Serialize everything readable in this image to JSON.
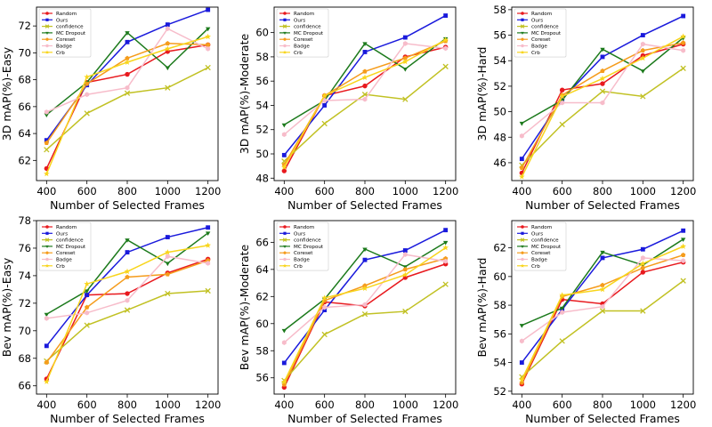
{
  "chart_data": [
    {
      "type": "line",
      "xlabel": "Number of Selected Frames",
      "ylabel": "3D mAP(%)-Easy",
      "x": [
        400,
        600,
        800,
        1000,
        1200
      ],
      "xticks": [
        400,
        600,
        800,
        1000,
        1200
      ],
      "ylim": [
        60.5,
        73.4
      ],
      "yticks": [
        62,
        64,
        66,
        68,
        70,
        72
      ],
      "legend_position": "upper-left",
      "series": [
        {
          "name": "Random",
          "values": [
            61.4,
            67.8,
            68.4,
            70.1,
            70.6
          ]
        },
        {
          "name": "Ours",
          "values": [
            63.5,
            67.6,
            70.8,
            72.1,
            73.2
          ]
        },
        {
          "name": "confidence",
          "values": [
            62.8,
            65.5,
            67.0,
            67.4,
            68.9
          ]
        },
        {
          "name": "MC Dropout",
          "values": [
            65.4,
            67.8,
            71.5,
            68.9,
            71.8
          ]
        },
        {
          "name": "Coreset",
          "values": [
            63.3,
            67.7,
            69.6,
            70.7,
            70.6
          ]
        },
        {
          "name": "Badge",
          "values": [
            65.6,
            66.9,
            67.4,
            71.8,
            70.3
          ]
        },
        {
          "name": "Crb",
          "values": [
            61.0,
            68.2,
            69.3,
            70.3,
            71.2
          ]
        }
      ]
    },
    {
      "type": "line",
      "xlabel": "Number of Selected Frames",
      "ylabel": "3D mAP(%)-Moderate",
      "x": [
        400,
        600,
        800,
        1000,
        1200
      ],
      "xticks": [
        400,
        600,
        800,
        1000,
        1200
      ],
      "ylim": [
        47.8,
        62.1
      ],
      "yticks": [
        48,
        50,
        52,
        54,
        56,
        58,
        60
      ],
      "legend_position": "upper-left",
      "series": [
        {
          "name": "Random",
          "values": [
            48.6,
            54.8,
            55.6,
            58.0,
            58.8
          ]
        },
        {
          "name": "Ours",
          "values": [
            49.9,
            54.0,
            58.4,
            59.6,
            61.4
          ]
        },
        {
          "name": "confidence",
          "values": [
            49.4,
            52.5,
            54.9,
            54.5,
            57.2
          ]
        },
        {
          "name": "MC Dropout",
          "values": [
            52.4,
            54.4,
            59.1,
            57.0,
            59.5
          ]
        },
        {
          "name": "Coreset",
          "values": [
            49.1,
            54.8,
            56.8,
            57.9,
            59.3
          ]
        },
        {
          "name": "Badge",
          "values": [
            51.6,
            54.4,
            54.5,
            59.1,
            58.7
          ]
        },
        {
          "name": "Crb",
          "values": [
            48.9,
            54.8,
            56.3,
            57.6,
            59.4
          ]
        }
      ]
    },
    {
      "type": "line",
      "xlabel": "Number of Selected Frames",
      "ylabel": "3D mAP(%)-Hard",
      "x": [
        400,
        600,
        800,
        1000,
        1200
      ],
      "xticks": [
        400,
        600,
        800,
        1000,
        1200
      ],
      "ylim": [
        44.6,
        58.2
      ],
      "yticks": [
        46,
        48,
        50,
        52,
        54,
        56,
        58
      ],
      "legend_position": "upper-left",
      "series": [
        {
          "name": "Random",
          "values": [
            45.2,
            51.7,
            52.2,
            54.4,
            55.3
          ]
        },
        {
          "name": "Ours",
          "values": [
            46.3,
            51.0,
            54.3,
            56.0,
            57.5
          ]
        },
        {
          "name": "confidence",
          "values": [
            45.8,
            49.0,
            51.6,
            51.2,
            53.4
          ]
        },
        {
          "name": "MC Dropout",
          "values": [
            49.1,
            50.9,
            54.9,
            53.2,
            55.8
          ]
        },
        {
          "name": "Coreset",
          "values": [
            45.6,
            51.3,
            53.2,
            54.8,
            55.4
          ]
        },
        {
          "name": "Badge",
          "values": [
            48.1,
            50.7,
            50.7,
            55.3,
            54.8
          ]
        },
        {
          "name": "Crb",
          "values": [
            44.9,
            51.2,
            52.6,
            54.2,
            55.9
          ]
        }
      ]
    },
    {
      "type": "line",
      "xlabel": "Number of Selected Frames",
      "ylabel": "Bev mAP(%)-Easy",
      "x": [
        400,
        600,
        800,
        1000,
        1200
      ],
      "xticks": [
        400,
        600,
        800,
        1000,
        1200
      ],
      "ylim": [
        65.4,
        78.0
      ],
      "yticks": [
        66,
        68,
        70,
        72,
        74,
        76,
        78
      ],
      "legend_position": "upper-left",
      "series": [
        {
          "name": "Random",
          "values": [
            66.5,
            72.6,
            72.7,
            74.2,
            75.2
          ]
        },
        {
          "name": "Ours",
          "values": [
            68.9,
            72.6,
            75.7,
            76.8,
            77.5
          ]
        },
        {
          "name": "confidence",
          "values": [
            67.8,
            70.4,
            71.5,
            72.7,
            72.9
          ]
        },
        {
          "name": "MC Dropout",
          "values": [
            71.2,
            72.9,
            76.6,
            74.9,
            77.1
          ]
        },
        {
          "name": "Coreset",
          "values": [
            67.7,
            71.7,
            73.9,
            74.1,
            75.1
          ]
        },
        {
          "name": "Badge",
          "values": [
            70.9,
            71.3,
            72.2,
            75.4,
            74.9
          ]
        },
        {
          "name": "Crb",
          "values": [
            66.3,
            73.4,
            74.3,
            75.7,
            76.2
          ]
        }
      ]
    },
    {
      "type": "line",
      "xlabel": "Number of Selected Frames",
      "ylabel": "Bev mAP(%)-Moderate",
      "x": [
        400,
        600,
        800,
        1000,
        1200
      ],
      "xticks": [
        400,
        600,
        800,
        1000,
        1200
      ],
      "ylim": [
        54.8,
        67.6
      ],
      "yticks": [
        56,
        58,
        60,
        62,
        64,
        66
      ],
      "legend_position": "upper-left",
      "series": [
        {
          "name": "Random",
          "values": [
            55.3,
            61.6,
            61.3,
            63.4,
            64.4
          ]
        },
        {
          "name": "Ours",
          "values": [
            57.1,
            61.0,
            64.7,
            65.4,
            66.9
          ]
        },
        {
          "name": "confidence",
          "values": [
            55.8,
            59.2,
            60.7,
            60.9,
            62.9
          ]
        },
        {
          "name": "MC Dropout",
          "values": [
            59.5,
            61.8,
            65.5,
            64.2,
            66.0
          ]
        },
        {
          "name": "Coreset",
          "values": [
            55.5,
            61.7,
            62.8,
            64.0,
            64.8
          ]
        },
        {
          "name": "Badge",
          "values": [
            58.6,
            61.2,
            61.4,
            65.1,
            64.6
          ]
        },
        {
          "name": "Crb",
          "values": [
            55.7,
            61.9,
            62.6,
            63.6,
            65.6
          ]
        }
      ]
    },
    {
      "type": "line",
      "xlabel": "Number of Selected Frames",
      "ylabel": "Bev mAP(%)-Hard",
      "x": [
        400,
        600,
        800,
        1000,
        1200
      ],
      "xticks": [
        400,
        600,
        800,
        1000,
        1200
      ],
      "ylim": [
        51.8,
        63.9
      ],
      "yticks": [
        52,
        54,
        56,
        58,
        60,
        62
      ],
      "legend_position": "upper-left",
      "series": [
        {
          "name": "Random",
          "values": [
            52.5,
            58.4,
            58.1,
            60.3,
            61.0
          ]
        },
        {
          "name": "Ours",
          "values": [
            54.0,
            57.7,
            61.3,
            61.9,
            63.2
          ]
        },
        {
          "name": "confidence",
          "values": [
            53.0,
            55.5,
            57.6,
            57.6,
            59.7
          ]
        },
        {
          "name": "MC Dropout",
          "values": [
            56.6,
            57.8,
            61.7,
            60.8,
            62.6
          ]
        },
        {
          "name": "Coreset",
          "values": [
            52.6,
            58.6,
            59.4,
            60.6,
            61.5
          ]
        },
        {
          "name": "Badge",
          "values": [
            55.5,
            57.5,
            57.9,
            61.3,
            61.1
          ]
        },
        {
          "name": "Crb",
          "values": [
            52.8,
            58.7,
            59.1,
            60.9,
            62.1
          ]
        }
      ]
    }
  ],
  "series_styles": [
    {
      "name": "Random",
      "color": "#e8191e",
      "marker": "circle"
    },
    {
      "name": "Ours",
      "color": "#1a1adc",
      "marker": "square"
    },
    {
      "name": "confidence",
      "color": "#c1c123",
      "marker": "x"
    },
    {
      "name": "MC Dropout",
      "color": "#1c7a1c",
      "marker": "triangle-down"
    },
    {
      "name": "Coreset",
      "color": "#f59c1c",
      "marker": "pentagon"
    },
    {
      "name": "Badge",
      "color": "#f7bcca",
      "marker": "hexagon"
    },
    {
      "name": "Crb",
      "color": "#f8d51c",
      "marker": "star"
    }
  ]
}
